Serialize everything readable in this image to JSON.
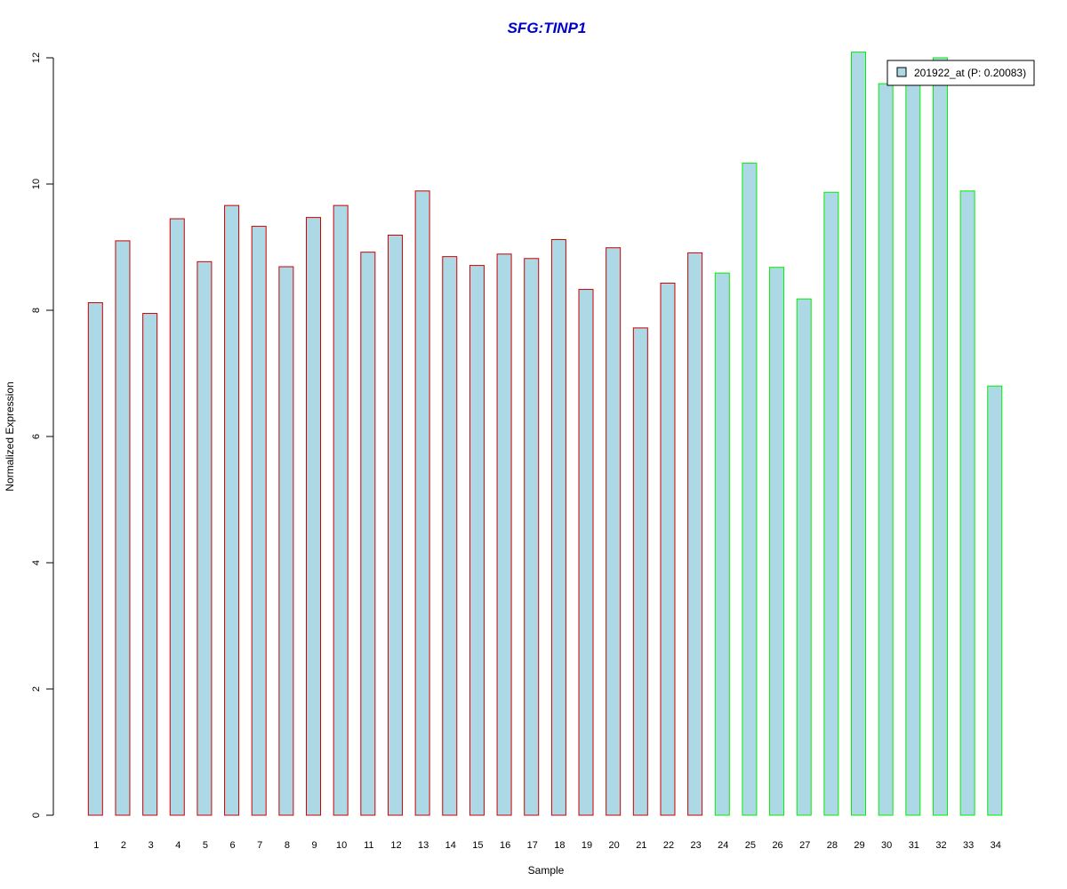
{
  "chart_data": {
    "type": "bar",
    "title": "SFG:TINP1",
    "xlabel": "Sample",
    "ylabel": "Normalized Expression",
    "ylim": [
      0,
      12
    ],
    "yticks": [
      "0",
      "2",
      "4",
      "6",
      "8",
      "10",
      "12"
    ],
    "categories": [
      "1",
      "2",
      "3",
      "4",
      "5",
      "6",
      "7",
      "8",
      "9",
      "10",
      "11",
      "12",
      "13",
      "14",
      "15",
      "16",
      "17",
      "18",
      "19",
      "20",
      "21",
      "22",
      "23",
      "24",
      "25",
      "26",
      "27",
      "28",
      "29",
      "30",
      "31",
      "32",
      "33",
      "34"
    ],
    "series": [
      {
        "name": "201922_at (P: 0.20083)",
        "values": [
          8.12,
          9.1,
          7.95,
          9.45,
          8.77,
          9.66,
          9.33,
          8.69,
          9.47,
          9.66,
          8.92,
          9.19,
          9.89,
          8.85,
          8.71,
          8.89,
          8.82,
          9.12,
          8.33,
          8.99,
          7.72,
          8.43,
          8.91,
          8.59,
          10.33,
          8.68,
          8.18,
          9.87,
          12.09,
          11.59,
          11.59,
          12.0,
          9.89,
          6.8
        ]
      }
    ],
    "groups": [
      {
        "samples": "1-23",
        "border_color": "#cc0000"
      },
      {
        "samples": "24-34",
        "border_color": "#00ee00"
      }
    ],
    "bar_fill": "#add8e6",
    "grid": false,
    "legend_position": "top-right"
  }
}
